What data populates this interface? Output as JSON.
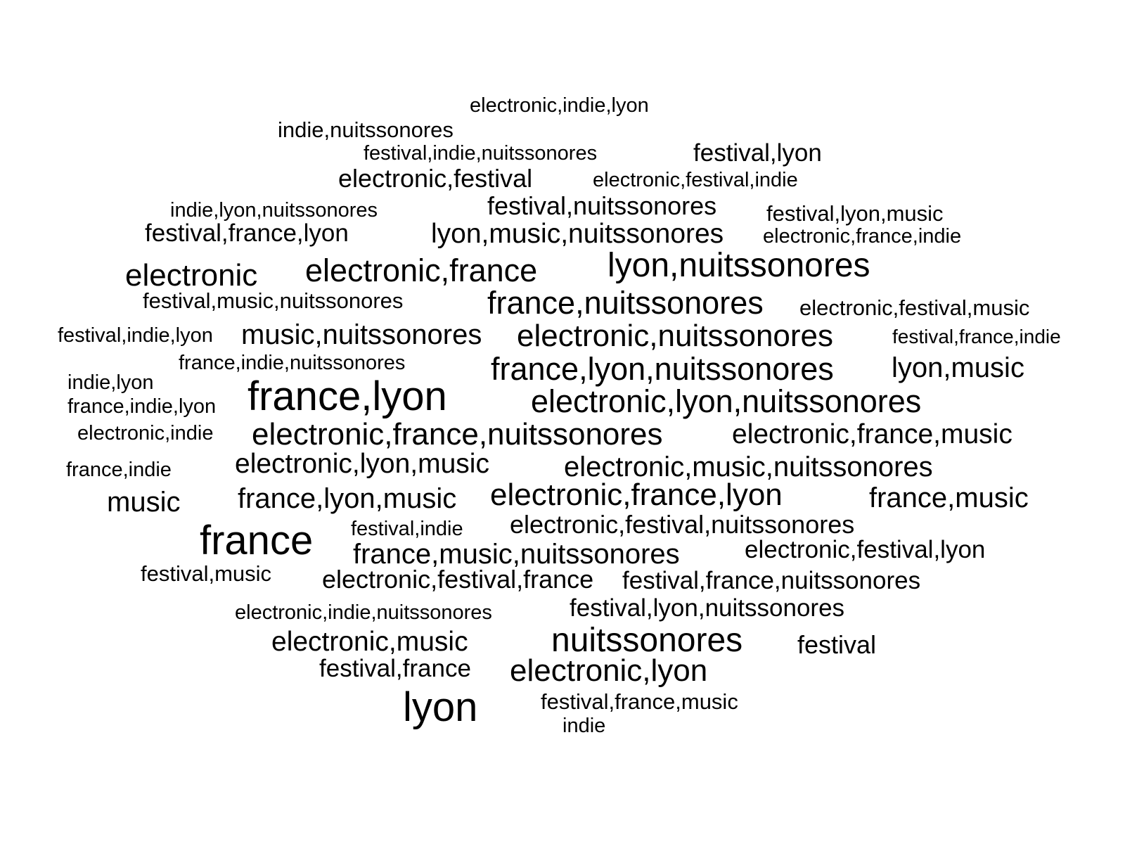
{
  "cloud": {
    "text_color": "#000000",
    "background_color": "#ffffff",
    "words": [
      "electronic,indie,lyon",
      "indie,nuitssonores",
      "festival,indie,nuitssonores",
      "festival,lyon",
      "electronic,festival",
      "electronic,festival,indie",
      "indie,lyon,nuitssonores",
      "festival,nuitssonores",
      "festival,lyon,music",
      "festival,france,lyon",
      "lyon,music,nuitssonores",
      "electronic,france,indie",
      "electronic",
      "electronic,france",
      "lyon,nuitssonores",
      "festival,music,nuitssonores",
      "france,nuitssonores",
      "electronic,festival,music",
      "festival,indie,lyon",
      "music,nuitssonores",
      "electronic,nuitssonores",
      "festival,france,indie",
      "france,indie,nuitssonores",
      "france,lyon,nuitssonores",
      "lyon,music",
      "indie,lyon",
      "france,lyon",
      "electronic,lyon,nuitssonores",
      "france,indie,lyon",
      "electronic,indie",
      "electronic,france,nuitssonores",
      "electronic,france,music",
      "electronic,lyon,music",
      "france,indie",
      "electronic,music,nuitssonores",
      "music",
      "france,lyon,music",
      "electronic,france,lyon",
      "france,music",
      "festival,indie",
      "electronic,festival,nuitssonores",
      "france",
      "france,music,nuitssonores",
      "electronic,festival,lyon",
      "festival,music",
      "electronic,festival,france",
      "festival,france,nuitssonores",
      "electronic,indie,nuitssonores",
      "festival,lyon,nuitssonores",
      "electronic,music",
      "nuitssonores",
      "festival",
      "festival,france",
      "electronic,lyon",
      "lyon",
      "festival,france,music",
      "indie"
    ]
  }
}
